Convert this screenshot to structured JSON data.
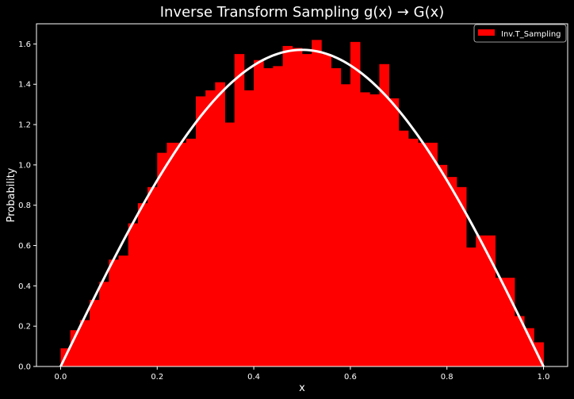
{
  "chart_data": {
    "type": "bar",
    "title": "Inverse Transform Sampling g(x) → G(x)",
    "xlabel": "x",
    "ylabel": "Probability",
    "xlim": [
      -0.05,
      1.05
    ],
    "ylim": [
      0,
      1.7
    ],
    "x_ticks": [
      "0.0",
      "0.2",
      "0.4",
      "0.6",
      "0.8",
      "1.0"
    ],
    "y_ticks": [
      "0.0",
      "0.2",
      "0.4",
      "0.6",
      "0.8",
      "1.0",
      "1.2",
      "1.4",
      "1.6"
    ],
    "grid": false,
    "legend": {
      "position": "top-right",
      "entries": [
        "Inv.T_Sampling"
      ]
    },
    "histogram": {
      "name": "Inv.T_Sampling",
      "color": "#ff0000",
      "bin_start": 0.0,
      "bin_width": 0.02,
      "values": [
        0.09,
        0.18,
        0.23,
        0.33,
        0.42,
        0.53,
        0.55,
        0.71,
        0.81,
        0.89,
        1.06,
        1.11,
        1.11,
        1.13,
        1.34,
        1.37,
        1.41,
        1.21,
        1.55,
        1.37,
        1.52,
        1.48,
        1.49,
        1.59,
        1.58,
        1.55,
        1.62,
        1.55,
        1.48,
        1.4,
        1.61,
        1.36,
        1.35,
        1.5,
        1.33,
        1.17,
        1.13,
        1.11,
        1.11,
        1.0,
        0.94,
        0.89,
        0.59,
        0.65,
        0.65,
        0.44,
        0.44,
        0.25,
        0.19,
        0.12
      ]
    },
    "curve": {
      "color": "#ffffff",
      "formula": "pi/2 * sin(pi * x)",
      "x_range": [
        0,
        1
      ]
    }
  }
}
